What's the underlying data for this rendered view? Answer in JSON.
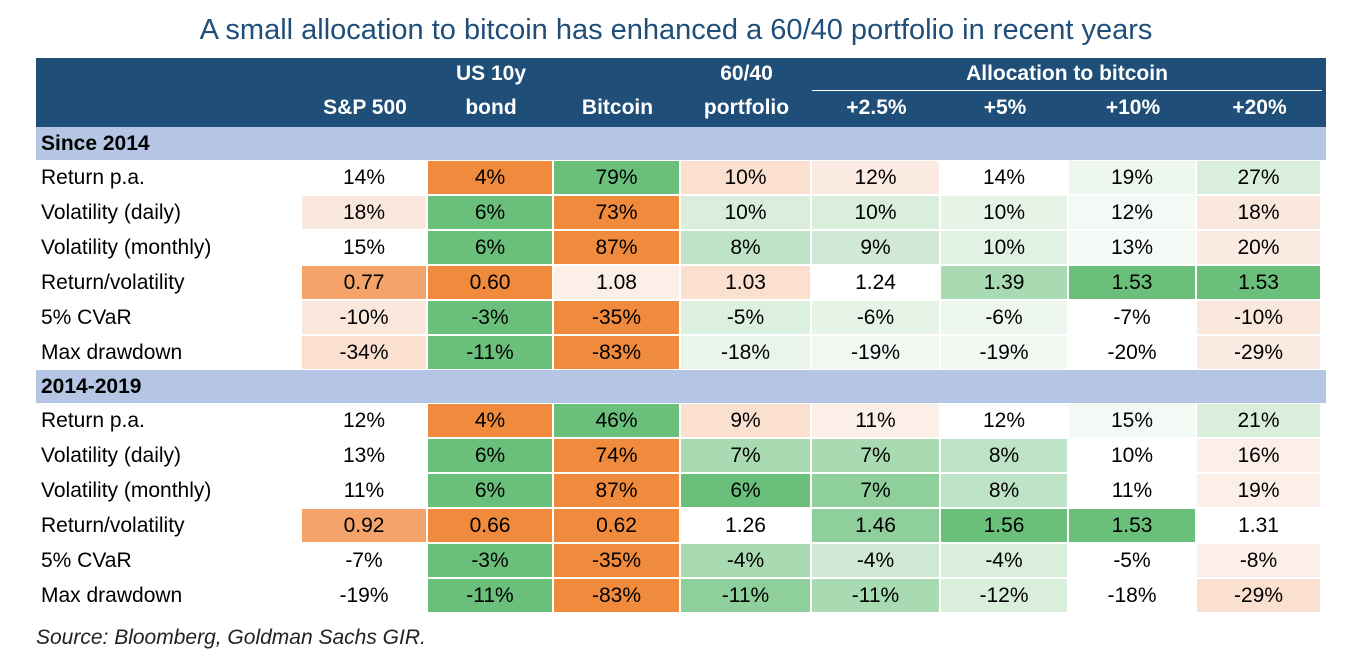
{
  "title": "A small allocation to bitcoin has enhanced a 60/40 portfolio in recent years",
  "source": "Source: Bloomberg, Goldman Sachs GIR.",
  "colors": {
    "header_bg": "#1f4e79",
    "section_bg": "#b4c6e4",
    "orange_strong": "#f08a3c",
    "orange_light": "#fbe0d0",
    "green_strong": "#6abf7b",
    "green_mid": "#a9dbb2",
    "green_light": "#d9efdc"
  },
  "header": {
    "group_label": "Allocation to bitcoin",
    "columns": [
      {
        "line1": "",
        "line2": "S&P 500"
      },
      {
        "line1": "US 10y",
        "line2": "bond"
      },
      {
        "line1": "",
        "line2": "Bitcoin"
      },
      {
        "line1": "60/40",
        "line2": "portfolio"
      },
      {
        "line1": "",
        "line2": "+2.5%"
      },
      {
        "line1": "",
        "line2": "+5%"
      },
      {
        "line1": "",
        "line2": "+10%"
      },
      {
        "line1": "",
        "line2": "+20%"
      }
    ]
  },
  "chart_data": {
    "type": "table",
    "title": "A small allocation to bitcoin has enhanced a 60/40 portfolio in recent years",
    "columns": [
      "S&P 500",
      "US 10y bond",
      "Bitcoin",
      "60/40 portfolio",
      "+2.5%",
      "+5%",
      "+10%",
      "+20%"
    ],
    "column_group": {
      "label": "Allocation to bitcoin",
      "columns": [
        "+2.5%",
        "+5%",
        "+10%",
        "+20%"
      ]
    },
    "sections": [
      {
        "label": "Since 2014",
        "rows": [
          {
            "label": "Return p.a.",
            "values": [
              "14%",
              "4%",
              "79%",
              "10%",
              "12%",
              "14%",
              "19%",
              "27%"
            ],
            "fills": [
              "",
              "#f08a3c",
              "#6abf7b",
              "#fbe0d0",
              "#fcebe2",
              "",
              "#eef7ef",
              "#d9efdc"
            ]
          },
          {
            "label": "Volatility (daily)",
            "values": [
              "18%",
              "6%",
              "73%",
              "10%",
              "10%",
              "10%",
              "12%",
              "18%"
            ],
            "fills": [
              "#fbe8dc",
              "#6abf7b",
              "#f08a3c",
              "#d9efdc",
              "#d9efdc",
              "#e6f4e8",
              "#f3f9f4",
              "#fbe8dc"
            ]
          },
          {
            "label": "Volatility (monthly)",
            "values": [
              "15%",
              "6%",
              "87%",
              "8%",
              "9%",
              "10%",
              "13%",
              "20%"
            ],
            "fills": [
              "",
              "#6abf7b",
              "#f08a3c",
              "#bfe3c6",
              "#cfe9d4",
              "#e1f2e4",
              "#f5faf6",
              "#fcebe2"
            ]
          },
          {
            "label": "Return/volatility",
            "values": [
              "0.77",
              "0.60",
              "1.08",
              "1.03",
              "1.24",
              "1.39",
              "1.53",
              "1.53"
            ],
            "fills": [
              "#f4a46a",
              "#f08a3c",
              "#fcefe7",
              "#fbe0d0",
              "",
              "#a9dbb2",
              "#6abf7b",
              "#6abf7b"
            ]
          },
          {
            "label": "5% CVaR",
            "values": [
              "-10%",
              "-3%",
              "-35%",
              "-5%",
              "-6%",
              "-6%",
              "-7%",
              "-10%"
            ],
            "fills": [
              "#fbe8dc",
              "#6abf7b",
              "#f08a3c",
              "#dcf0df",
              "#e6f4e8",
              "#eef7ef",
              "",
              "#fbe8dc"
            ]
          },
          {
            "label": "Max drawdown",
            "values": [
              "-34%",
              "-11%",
              "-83%",
              "-18%",
              "-19%",
              "-19%",
              "-20%",
              "-29%"
            ],
            "fills": [
              "#fbe0d0",
              "#6abf7b",
              "#f08a3c",
              "#e9f5eb",
              "#f1f8f2",
              "#f1f8f2",
              "",
              "#fcebe2"
            ]
          }
        ]
      },
      {
        "label": "2014-2019",
        "rows": [
          {
            "label": "Return p.a.",
            "values": [
              "12%",
              "4%",
              "46%",
              "9%",
              "11%",
              "12%",
              "15%",
              "21%"
            ],
            "fills": [
              "",
              "#f08a3c",
              "#6abf7b",
              "#fbe0d0",
              "#fcefe7",
              "",
              "#f3f9f4",
              "#d9efdc"
            ]
          },
          {
            "label": "Volatility (daily)",
            "values": [
              "13%",
              "6%",
              "74%",
              "7%",
              "7%",
              "8%",
              "10%",
              "16%"
            ],
            "fills": [
              "",
              "#6abf7b",
              "#f08a3c",
              "#a9dbb2",
              "#a9dbb2",
              "#bfe3c6",
              "",
              "#fcefe7"
            ]
          },
          {
            "label": "Volatility (monthly)",
            "values": [
              "11%",
              "6%",
              "87%",
              "6%",
              "7%",
              "8%",
              "11%",
              "19%"
            ],
            "fills": [
              "",
              "#6abf7b",
              "#f08a3c",
              "#6abf7b",
              "#8fcf9b",
              "#bfe3c6",
              "",
              "#fcefe7"
            ]
          },
          {
            "label": "Return/volatility",
            "values": [
              "0.92",
              "0.66",
              "0.62",
              "1.26",
              "1.46",
              "1.56",
              "1.53",
              "1.31"
            ],
            "fills": [
              "#f4a46a",
              "#f08a3c",
              "#f08a3c",
              "",
              "#8fcf9b",
              "#6abf7b",
              "#6abf7b",
              ""
            ]
          },
          {
            "label": "5% CVaR",
            "values": [
              "-7%",
              "-3%",
              "-35%",
              "-4%",
              "-4%",
              "-4%",
              "-5%",
              "-8%"
            ],
            "fills": [
              "",
              "#6abf7b",
              "#f08a3c",
              "#a9dbb2",
              "#cfe9d4",
              "#d9efdc",
              "",
              "#fcefe7"
            ]
          },
          {
            "label": "Max drawdown",
            "values": [
              "-19%",
              "-11%",
              "-83%",
              "-11%",
              "-11%",
              "-12%",
              "-18%",
              "-29%"
            ],
            "fills": [
              "",
              "#6abf7b",
              "#f08a3c",
              "#8fcf9b",
              "#a9dbb2",
              "#d9efdc",
              "",
              "#fbe0d0"
            ]
          }
        ]
      }
    ]
  }
}
